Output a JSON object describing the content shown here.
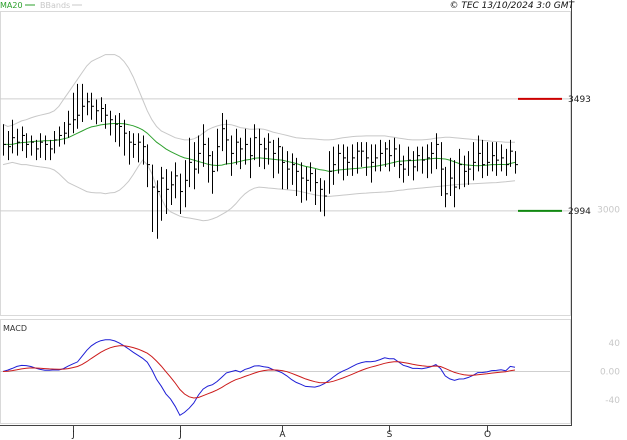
{
  "chart_data": [
    {
      "type": "ohlc",
      "copyright": "© TEC 13/10/2024 3:0 GMT",
      "legend": [
        {
          "label": "MA20",
          "color": "#2ca02c"
        },
        {
          "label": "BBands",
          "color": "#c8c8c8"
        }
      ],
      "ylim": [
        2530,
        3880
      ],
      "y_ticks": [
        {
          "value": 3000,
          "label": "3000"
        }
      ],
      "x_ticks": [
        {
          "index": 15,
          "label": "J"
        },
        {
          "index": 38,
          "label": "J"
        },
        {
          "index": 60,
          "label": "A"
        },
        {
          "index": 83,
          "label": "S"
        },
        {
          "index": 104,
          "label": "O"
        }
      ],
      "levels": [
        {
          "name": "resistance",
          "value": 3493,
          "label": "3493",
          "color": "#cc0000"
        },
        {
          "name": "support",
          "value": 2994,
          "label": "2994",
          "color": "#118811"
        }
      ],
      "close": [
        3290,
        3280,
        3320,
        3300,
        3330,
        3290,
        3300,
        3270,
        3300,
        3290,
        3270,
        3310,
        3330,
        3340,
        3380,
        3400,
        3420,
        3460,
        3480,
        3460,
        3440,
        3450,
        3420,
        3400,
        3380,
        3370,
        3340,
        3300,
        3290,
        3300,
        3280,
        3200,
        3100,
        3080,
        3140,
        3090,
        3110,
        3150,
        3080,
        3130,
        3210,
        3180,
        3250,
        3290,
        3240,
        3170,
        3280,
        3360,
        3310,
        3250,
        3300,
        3270,
        3290,
        3240,
        3320,
        3290,
        3270,
        3300,
        3250,
        3280,
        3210,
        3180,
        3200,
        3170,
        3140,
        3130,
        3160,
        3120,
        3090,
        3060,
        3170,
        3200,
        3250,
        3230,
        3210,
        3230,
        3260,
        3260,
        3230,
        3210,
        3230,
        3250,
        3270,
        3240,
        3270,
        3200,
        3180,
        3220,
        3190,
        3240,
        3220,
        3230,
        3250,
        3290,
        3180,
        3070,
        3140,
        3100,
        3200,
        3170,
        3180,
        3210,
        3250,
        3200,
        3210,
        3240,
        3220,
        3230,
        3200,
        3260,
        3200
      ],
      "high": [
        3380,
        3350,
        3400,
        3360,
        3370,
        3340,
        3330,
        3310,
        3340,
        3330,
        3310,
        3350,
        3370,
        3390,
        3440,
        3520,
        3560,
        3560,
        3520,
        3520,
        3490,
        3500,
        3470,
        3440,
        3420,
        3430,
        3400,
        3350,
        3340,
        3340,
        3330,
        3290,
        3200,
        3130,
        3190,
        3180,
        3170,
        3210,
        3160,
        3220,
        3320,
        3300,
        3330,
        3380,
        3320,
        3260,
        3360,
        3430,
        3400,
        3330,
        3360,
        3320,
        3360,
        3320,
        3380,
        3360,
        3320,
        3340,
        3310,
        3320,
        3280,
        3260,
        3250,
        3230,
        3210,
        3190,
        3210,
        3180,
        3140,
        3130,
        3260,
        3280,
        3290,
        3290,
        3280,
        3290,
        3300,
        3300,
        3300,
        3290,
        3290,
        3310,
        3300,
        3310,
        3320,
        3290,
        3240,
        3280,
        3260,
        3280,
        3280,
        3290,
        3300,
        3340,
        3300,
        3190,
        3230,
        3220,
        3270,
        3240,
        3260,
        3300,
        3330,
        3310,
        3300,
        3300,
        3300,
        3290,
        3270,
        3310,
        3260
      ],
      "low": [
        3240,
        3220,
        3250,
        3240,
        3260,
        3230,
        3240,
        3220,
        3230,
        3220,
        3220,
        3250,
        3280,
        3290,
        3320,
        3340,
        3360,
        3390,
        3420,
        3400,
        3380,
        3390,
        3360,
        3330,
        3300,
        3280,
        3240,
        3200,
        3230,
        3210,
        3200,
        3100,
        2900,
        2870,
        2950,
        2980,
        3020,
        3050,
        2980,
        3010,
        3100,
        3090,
        3160,
        3190,
        3120,
        3070,
        3170,
        3260,
        3200,
        3150,
        3200,
        3180,
        3200,
        3140,
        3220,
        3190,
        3180,
        3200,
        3140,
        3160,
        3090,
        3090,
        3110,
        3060,
        3030,
        3040,
        3080,
        3020,
        2990,
        2970,
        3070,
        3110,
        3160,
        3130,
        3150,
        3150,
        3160,
        3190,
        3150,
        3120,
        3170,
        3170,
        3190,
        3170,
        3190,
        3140,
        3120,
        3150,
        3130,
        3170,
        3160,
        3140,
        3160,
        3180,
        3060,
        3010,
        3060,
        3010,
        3090,
        3100,
        3110,
        3130,
        3170,
        3140,
        3150,
        3170,
        3150,
        3170,
        3150,
        3190,
        3160
      ],
      "ma20": [
        3290,
        3290,
        3290,
        3295,
        3298,
        3300,
        3302,
        3304,
        3305,
        3306,
        3307,
        3308,
        3310,
        3315,
        3320,
        3330,
        3340,
        3350,
        3360,
        3368,
        3372,
        3377,
        3380,
        3382,
        3383,
        3383,
        3382,
        3378,
        3373,
        3365,
        3355,
        3340,
        3320,
        3300,
        3285,
        3270,
        3258,
        3248,
        3238,
        3230,
        3226,
        3220,
        3214,
        3208,
        3202,
        3198,
        3196,
        3198,
        3203,
        3205,
        3210,
        3215,
        3220,
        3223,
        3228,
        3230,
        3228,
        3226,
        3224,
        3222,
        3220,
        3215,
        3210,
        3205,
        3198,
        3192,
        3188,
        3183,
        3178,
        3175,
        3170,
        3172,
        3176,
        3178,
        3180,
        3182,
        3183,
        3185,
        3188,
        3190,
        3193,
        3196,
        3200,
        3205,
        3210,
        3215,
        3216,
        3218,
        3218,
        3220,
        3222,
        3224,
        3226,
        3228,
        3227,
        3225,
        3220,
        3212,
        3205,
        3200,
        3198,
        3196,
        3195,
        3196,
        3198,
        3200,
        3200,
        3201,
        3200,
        3205,
        3210
      ],
      "bb_upper": [
        3380,
        3370,
        3375,
        3385,
        3395,
        3400,
        3408,
        3415,
        3420,
        3425,
        3430,
        3440,
        3460,
        3490,
        3520,
        3550,
        3580,
        3610,
        3640,
        3660,
        3670,
        3680,
        3690,
        3690,
        3690,
        3680,
        3660,
        3630,
        3590,
        3540,
        3490,
        3440,
        3400,
        3370,
        3350,
        3340,
        3330,
        3320,
        3315,
        3310,
        3310,
        3315,
        3325,
        3340,
        3355,
        3365,
        3372,
        3378,
        3380,
        3378,
        3372,
        3365,
        3362,
        3358,
        3358,
        3360,
        3358,
        3352,
        3345,
        3340,
        3335,
        3330,
        3325,
        3320,
        3318,
        3316,
        3315,
        3314,
        3312,
        3310,
        3310,
        3312,
        3316,
        3320,
        3322,
        3325,
        3326,
        3327,
        3328,
        3328,
        3328,
        3328,
        3328,
        3325,
        3322,
        3318,
        3315,
        3312,
        3310,
        3310,
        3310,
        3312,
        3314,
        3318,
        3320,
        3322,
        3322,
        3320,
        3318,
        3316,
        3314,
        3312,
        3310,
        3308,
        3306,
        3304,
        3303,
        3302,
        3300,
        3300,
        3300
      ],
      "bb_lower": [
        3200,
        3205,
        3210,
        3205,
        3200,
        3200,
        3196,
        3193,
        3190,
        3187,
        3184,
        3176,
        3160,
        3140,
        3120,
        3110,
        3100,
        3090,
        3080,
        3076,
        3074,
        3074,
        3070,
        3074,
        3076,
        3086,
        3104,
        3126,
        3156,
        3190,
        3220,
        3200,
        3160,
        3100,
        3050,
        3010,
        2990,
        2980,
        2970,
        2965,
        2962,
        2958,
        2954,
        2950,
        2952,
        2958,
        2966,
        2978,
        2990,
        3005,
        3025,
        3050,
        3070,
        3085,
        3095,
        3100,
        3098,
        3096,
        3094,
        3092,
        3090,
        3088,
        3086,
        3084,
        3080,
        3075,
        3070,
        3065,
        3062,
        3060,
        3058,
        3060,
        3062,
        3064,
        3066,
        3068,
        3070,
        3072,
        3073,
        3075,
        3076,
        3077,
        3078,
        3080,
        3082,
        3085,
        3087,
        3090,
        3092,
        3094,
        3096,
        3098,
        3100,
        3102,
        3104,
        3106,
        3108,
        3110,
        3112,
        3113,
        3114,
        3115,
        3116,
        3117,
        3118,
        3119,
        3120,
        3122,
        3124,
        3126,
        3128
      ]
    },
    {
      "type": "line",
      "title": "MACD",
      "ylim": [
        -72,
        72
      ],
      "y_ticks": [
        {
          "value": 40,
          "label": "40"
        },
        {
          "value": 0,
          "label": "0.00"
        },
        {
          "value": -40,
          "label": "-40"
        }
      ],
      "series": [
        {
          "color": "#1f1fd6",
          "values": [
            0.0,
            2.0,
            4.3,
            7.1,
            8.5,
            8.3,
            7.0,
            4.7,
            3.0,
            1.8,
            1.8,
            2.2,
            2.1,
            4.0,
            7.6,
            10.6,
            13.4,
            21.4,
            29.7,
            35.9,
            40.3,
            43.1,
            44.5,
            44.3,
            42.8,
            39.7,
            35.9,
            31.5,
            26.9,
            22.7,
            18.5,
            13.0,
            2.2,
            -11.1,
            -20.6,
            -31.3,
            -38.6,
            -48.6,
            -61.3,
            -57.2,
            -51.3,
            -44.1,
            -32.8,
            -24.6,
            -20.4,
            -18.4,
            -14.0,
            -8.0,
            -2.0,
            -0.1,
            1.6,
            -0.9,
            2.9,
            4.9,
            7.7,
            7.9,
            6.7,
            5.7,
            2.6,
            0.9,
            -1.9,
            -6.1,
            -11.3,
            -15.3,
            -17.9,
            -20.8,
            -21.2,
            -21.8,
            -20.2,
            -17.0,
            -12.7,
            -7.5,
            -3.0,
            0.5,
            3.3,
            6.9,
            10.2,
            12.5,
            13.9,
            13.6,
            14.6,
            16.7,
            19.2,
            17.9,
            17.7,
            13.3,
            8.7,
            6.8,
            4.3,
            4.4,
            3.9,
            5.1,
            6.9,
            9.6,
            4.2,
            -6.1,
            -10.3,
            -12.3,
            -10.5,
            -10.3,
            -8.2,
            -5.3,
            -1.6,
            -1.4,
            -0.6,
            1.2,
            1.5,
            2.4,
            1.0,
            7.2,
            6.0
          ]
        },
        {
          "color": "#cc1b1b",
          "values": [
            0.0,
            0.4,
            1.2,
            2.4,
            3.6,
            4.5,
            5.0,
            4.9,
            4.6,
            4.0,
            3.6,
            3.3,
            3.1,
            3.3,
            4.1,
            5.4,
            7.0,
            9.9,
            13.9,
            18.3,
            22.7,
            26.8,
            30.3,
            33.1,
            35.0,
            35.9,
            35.9,
            35.0,
            33.4,
            31.3,
            28.7,
            25.6,
            20.9,
            14.5,
            7.5,
            -0.3,
            -8.0,
            -16.1,
            -25.1,
            -31.5,
            -35.4,
            -37.1,
            -36.3,
            -33.9,
            -31.2,
            -28.6,
            -25.7,
            -22.2,
            -18.2,
            -14.6,
            -11.4,
            -9.3,
            -6.9,
            -4.6,
            -2.2,
            -0.2,
            1.2,
            2.1,
            2.2,
            1.9,
            1.2,
            -0.3,
            -2.5,
            -5.1,
            -7.7,
            -10.3,
            -12.5,
            -14.3,
            -15.5,
            -15.8,
            -15.1,
            -13.6,
            -11.5,
            -9.1,
            -6.6,
            -3.9,
            -1.1,
            1.6,
            4.1,
            6.0,
            7.7,
            9.5,
            11.4,
            12.7,
            13.7,
            13.6,
            12.6,
            11.5,
            10.1,
            8.9,
            7.9,
            7.3,
            7.2,
            7.7,
            7.0,
            4.4,
            1.5,
            -1.3,
            -3.1,
            -4.5,
            -5.2,
            -5.2,
            -4.5,
            -3.9,
            -3.2,
            -2.3,
            -1.6,
            -0.8,
            -0.4,
            1.1,
            2.1
          ]
        }
      ]
    }
  ]
}
